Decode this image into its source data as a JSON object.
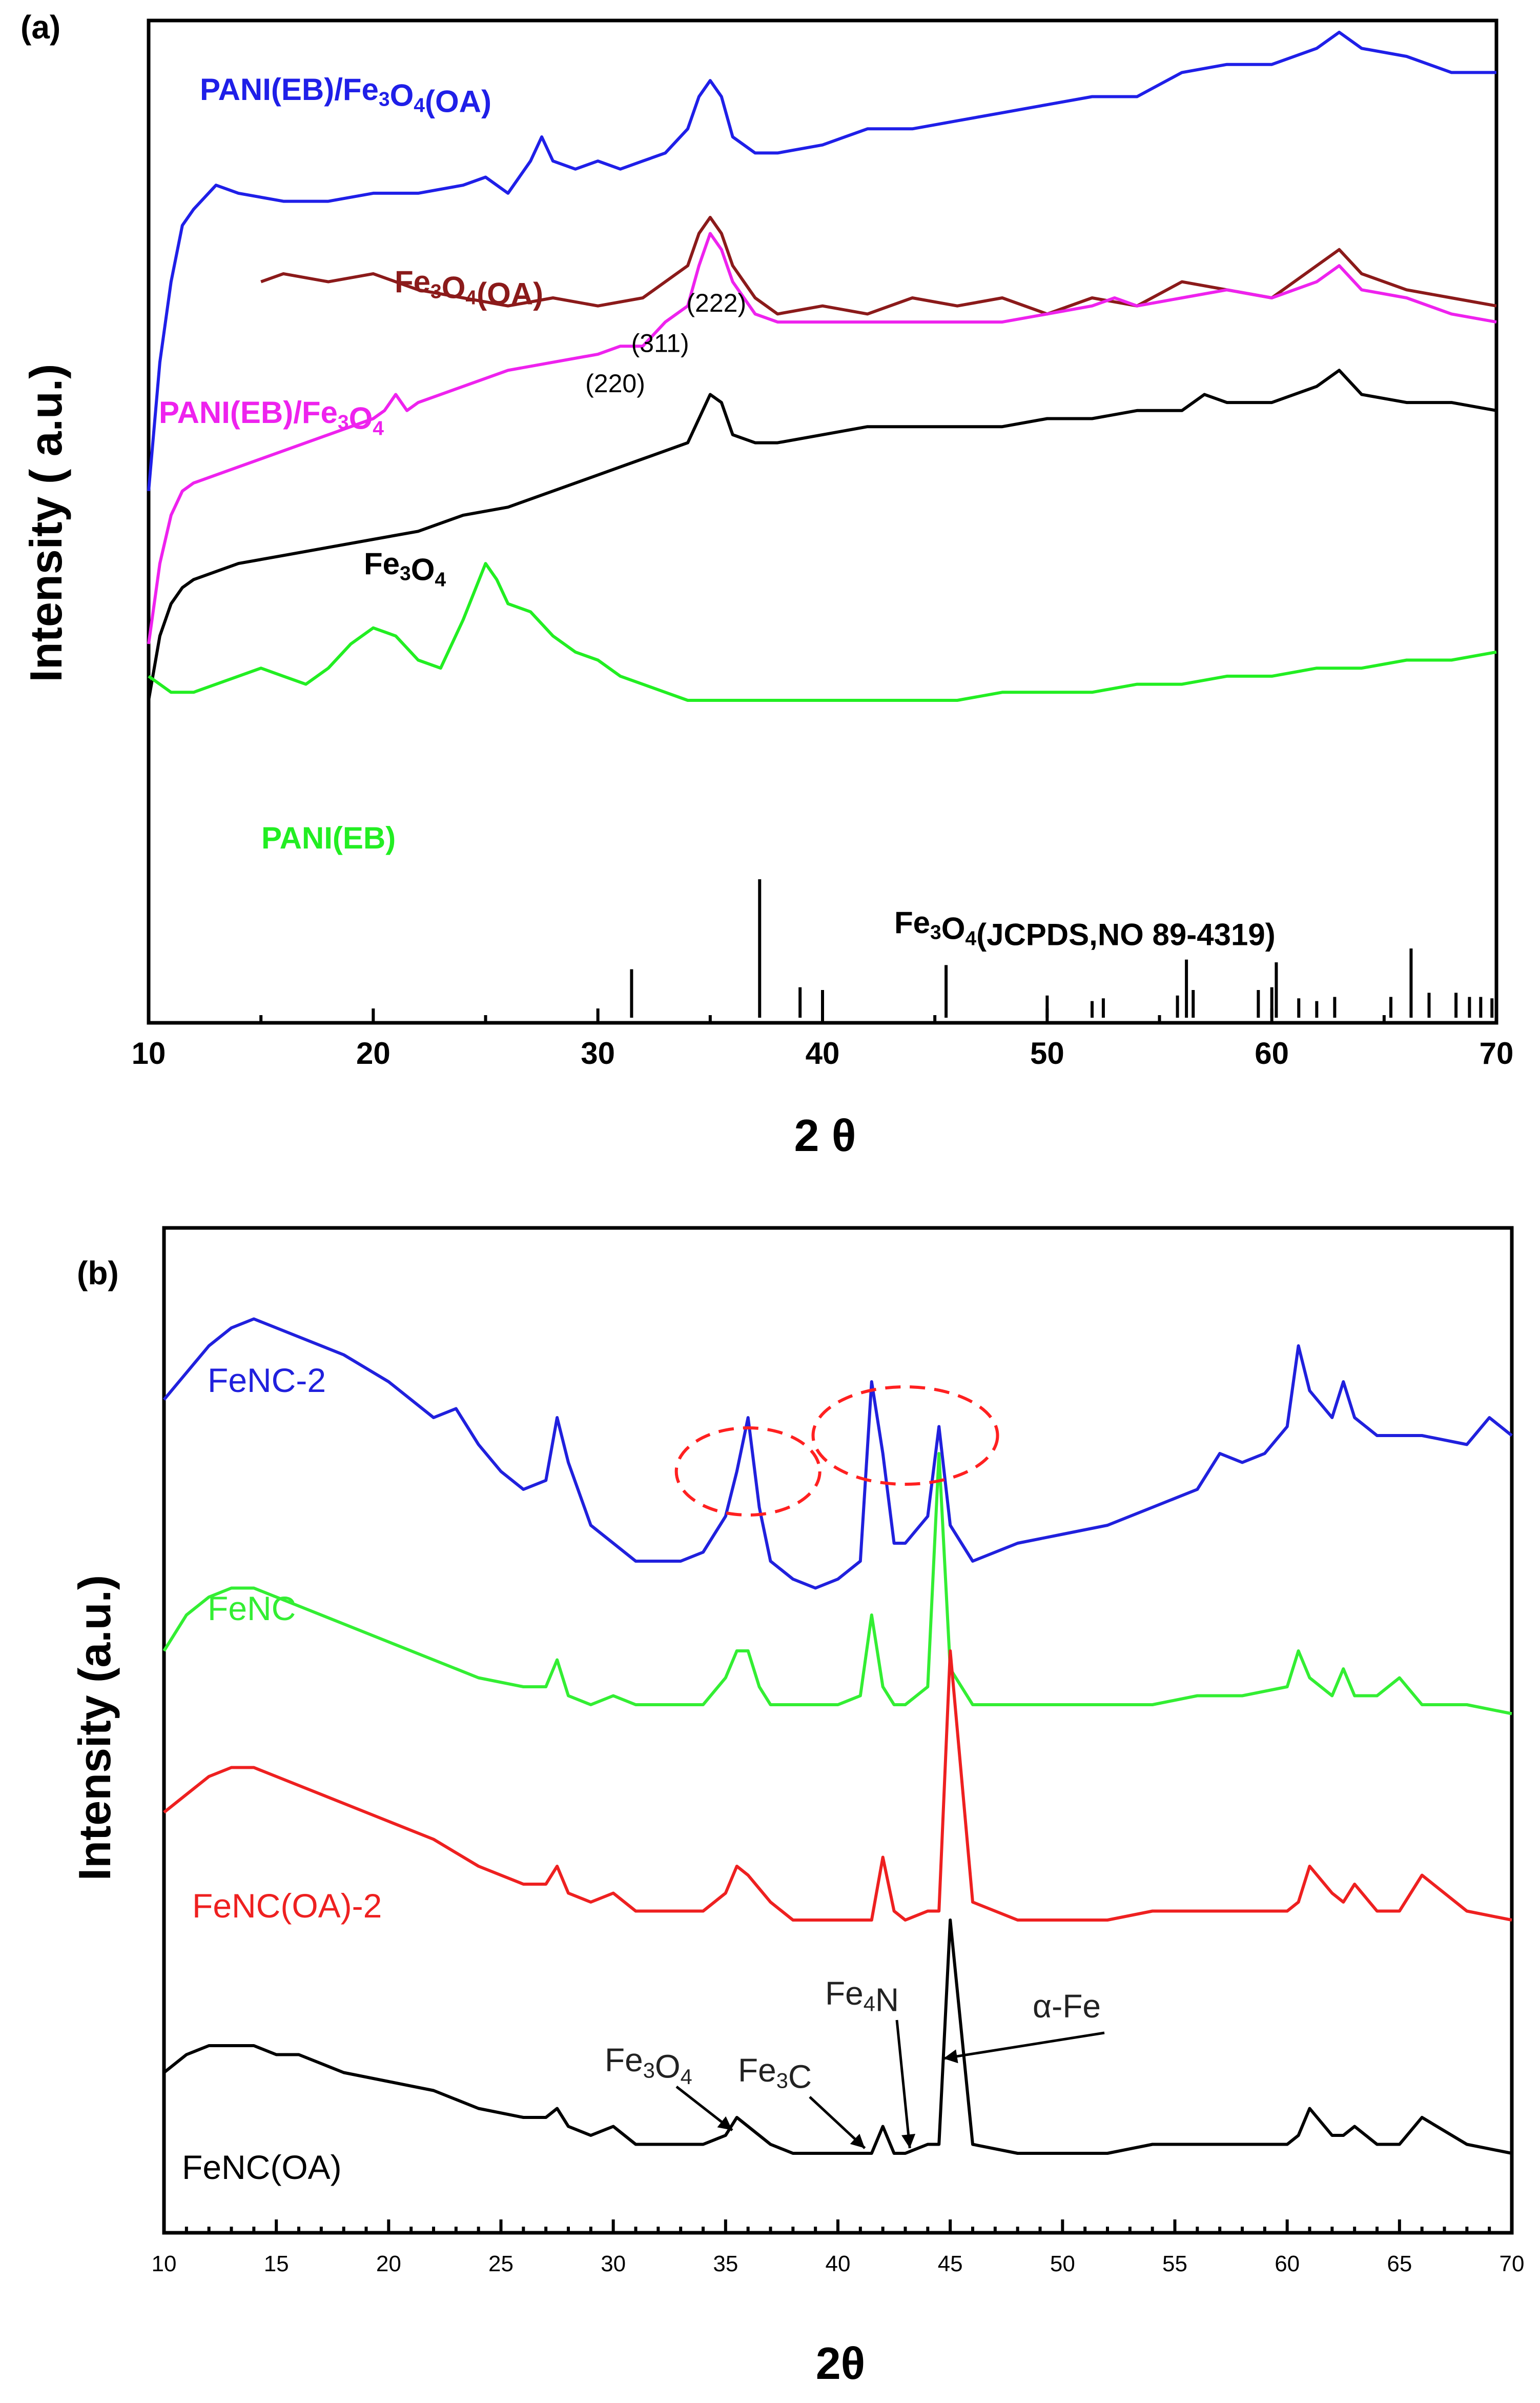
{
  "chart_data": [
    {
      "panel": "(a)",
      "type": "line",
      "xlabel": "2 θ",
      "ylabel": "Intensity ( a.u.)",
      "xlim": [
        10,
        70
      ],
      "xticks": [
        10,
        20,
        30,
        40,
        50,
        60,
        70
      ],
      "series": [
        {
          "name": "PANI(EB)/Fe3O4(OA)",
          "label_main": "PANI(EB)/Fe",
          "label_sub": "3",
          "label_mid": "O",
          "label_sub2": "4",
          "label_tail": "(OA)",
          "color": "#1f1fe8",
          "x": [
            10,
            10.5,
            11,
            11.5,
            12,
            13,
            14,
            16,
            18,
            20,
            22,
            24,
            25,
            26,
            27,
            27.5,
            28,
            29,
            30,
            31,
            32,
            33,
            34,
            34.5,
            35,
            35.5,
            36,
            37,
            38,
            40,
            42,
            44,
            46,
            48,
            50,
            52,
            54,
            56,
            58,
            60,
            62,
            63,
            64,
            66,
            68,
            70
          ],
          "y": [
            46,
            62,
            72,
            79,
            81,
            84,
            83,
            82,
            82,
            83,
            83,
            84,
            85,
            83,
            87,
            90,
            87,
            86,
            87,
            86,
            87,
            88,
            91,
            95,
            97,
            95,
            90,
            88,
            88,
            89,
            91,
            91,
            92,
            93,
            94,
            95,
            95,
            98,
            99,
            99,
            101,
            103,
            101,
            100,
            98,
            98
          ]
        },
        {
          "name": "Fe3O4(OA)",
          "label_main": "Fe",
          "label_sub": "3",
          "label_mid": "O",
          "label_sub2": "4",
          "label_tail": "(OA)",
          "color": "#8b1a1a",
          "x": [
            15,
            16,
            18,
            20,
            22,
            24,
            26,
            28,
            30,
            32,
            33,
            34,
            34.5,
            35,
            35.5,
            36,
            37,
            38,
            40,
            42,
            44,
            46,
            48,
            50,
            52,
            54,
            56,
            58,
            60,
            61,
            62,
            63,
            64,
            66,
            68,
            70
          ],
          "y": [
            72,
            73,
            72,
            73,
            71,
            70,
            69,
            70,
            69,
            70,
            72,
            74,
            78,
            80,
            78,
            74,
            70,
            68,
            69,
            68,
            70,
            69,
            70,
            68,
            70,
            69,
            72,
            71,
            70,
            72,
            74,
            76,
            73,
            71,
            70,
            69
          ]
        },
        {
          "name": "PANI(EB)/Fe3O4",
          "label_main": "PANI(EB)/Fe",
          "label_sub": "3",
          "label_mid": "O",
          "label_sub2": "4",
          "label_tail": "",
          "color": "#ee22ee",
          "x": [
            10,
            10.5,
            11,
            11.5,
            12,
            14,
            16,
            18,
            20,
            20.5,
            21,
            21.5,
            22,
            24,
            26,
            28,
            30,
            31,
            32,
            33,
            34,
            34.5,
            35,
            35.5,
            36,
            36.5,
            37,
            38,
            40,
            42,
            44,
            46,
            48,
            50,
            52,
            53,
            54,
            56,
            58,
            60,
            62,
            63,
            64,
            66,
            68,
            70
          ],
          "y": [
            27,
            37,
            43,
            46,
            47,
            49,
            51,
            53,
            55,
            56,
            58,
            56,
            57,
            59,
            61,
            62,
            63,
            64,
            64,
            67,
            69,
            74,
            78,
            76,
            72,
            70,
            68,
            67,
            67,
            67,
            67,
            67,
            67,
            68,
            69,
            70,
            69,
            70,
            71,
            70,
            72,
            74,
            71,
            70,
            68,
            67
          ]
        },
        {
          "name": "Fe3O4",
          "label_main": "Fe",
          "label_sub": "3",
          "label_mid": "O",
          "label_sub2": "4",
          "label_tail": "",
          "color": "#000000",
          "x": [
            10,
            10.5,
            11,
            11.5,
            12,
            14,
            16,
            18,
            20,
            22,
            24,
            26,
            28,
            30,
            31,
            32,
            33,
            34,
            34.5,
            35,
            35.5,
            36,
            37,
            38,
            40,
            42,
            44,
            46,
            48,
            50,
            52,
            54,
            56,
            57,
            58,
            60,
            62,
            63,
            64,
            66,
            68,
            70
          ],
          "y": [
            20,
            28,
            32,
            34,
            35,
            37,
            38,
            39,
            40,
            41,
            43,
            44,
            46,
            48,
            49,
            50,
            51,
            52,
            55,
            58,
            57,
            53,
            52,
            52,
            53,
            54,
            54,
            54,
            54,
            55,
            55,
            56,
            56,
            58,
            57,
            57,
            59,
            61,
            58,
            57,
            57,
            56
          ]
        },
        {
          "name": "PANI(EB)",
          "label_main": "PANI(EB)",
          "label_sub": "",
          "label_mid": "",
          "label_sub2": "",
          "label_tail": "",
          "color": "#22ee22",
          "x": [
            10,
            11,
            12,
            13,
            14,
            15,
            16,
            17,
            18,
            19,
            20,
            21,
            22,
            23,
            24,
            25,
            25.5,
            26,
            27,
            28,
            29,
            30,
            31,
            32,
            33,
            34,
            36,
            38,
            40,
            42,
            44,
            46,
            48,
            50,
            52,
            54,
            56,
            58,
            60,
            62,
            64,
            66,
            68,
            70
          ],
          "y": [
            23,
            21,
            21,
            22,
            23,
            24,
            23,
            22,
            24,
            27,
            29,
            28,
            25,
            24,
            30,
            37,
            35,
            32,
            31,
            28,
            26,
            25,
            23,
            22,
            21,
            20,
            20,
            20,
            20,
            20,
            20,
            20,
            21,
            21,
            21,
            22,
            22,
            23,
            23,
            24,
            24,
            25,
            25,
            26
          ]
        }
      ],
      "hkl_labels": [
        {
          "text": "(220)",
          "x": 31,
          "y": 57
        },
        {
          "text": "(311)",
          "x": 33,
          "y": 62
        },
        {
          "text": "(222)",
          "x": 35.5,
          "y": 67
        }
      ],
      "reference": {
        "label_main": "Fe",
        "label_sub": "3",
        "label_mid": "O",
        "label_sub2": "4",
        "label_tail": "(JCPDS,NO 89-4319)",
        "positions": [
          31.5,
          37.2,
          39.0,
          40.0,
          45.5,
          50.0,
          52.0,
          52.5,
          55.8,
          56.2,
          56.5,
          59.4,
          60.0,
          60.2,
          61.2,
          62.0,
          62.8,
          65.3,
          66.2,
          67.0,
          68.2,
          68.8,
          69.3,
          69.8
        ],
        "heights": [
          0.35,
          1.0,
          0.22,
          0.2,
          0.38,
          0.16,
          0.12,
          0.14,
          0.16,
          0.42,
          0.2,
          0.2,
          0.22,
          0.4,
          0.14,
          0.12,
          0.15,
          0.15,
          0.5,
          0.18,
          0.18,
          0.15,
          0.15,
          0.14
        ]
      }
    },
    {
      "panel": "(b)",
      "type": "line",
      "xlabel": "2θ",
      "ylabel": "Intensity (a.u.)",
      "xlim": [
        10,
        70
      ],
      "xticks": [
        10,
        15,
        20,
        25,
        30,
        35,
        40,
        45,
        50,
        55,
        60,
        65,
        70
      ],
      "series": [
        {
          "name": "FeNC-2",
          "color": "#2020dd",
          "x": [
            10,
            11,
            12,
            13,
            14,
            15,
            16,
            18,
            20,
            22,
            23,
            24,
            25,
            26,
            27,
            27.5,
            28,
            29,
            30,
            31,
            32,
            33,
            34,
            35,
            35.5,
            36,
            36.5,
            37,
            38,
            39,
            40,
            41,
            41.5,
            42,
            42.5,
            43,
            44,
            44.5,
            45,
            46,
            48,
            50,
            52,
            54,
            56,
            57,
            58,
            59,
            60,
            60.5,
            61,
            62,
            62.5,
            63,
            64,
            66,
            68,
            69,
            70
          ],
          "y": [
            88,
            91,
            94,
            96,
            97,
            96,
            95,
            93,
            90,
            86,
            87,
            83,
            80,
            78,
            79,
            86,
            81,
            74,
            72,
            70,
            70,
            70,
            71,
            75,
            80,
            86,
            76,
            70,
            68,
            67,
            68,
            70,
            90,
            82,
            72,
            72,
            75,
            85,
            74,
            70,
            72,
            73,
            74,
            76,
            78,
            82,
            81,
            82,
            85,
            94,
            89,
            86,
            90,
            86,
            84,
            84,
            83,
            86,
            84
          ]
        },
        {
          "name": "FeNC",
          "color": "#33ee33",
          "x": [
            10,
            11,
            12,
            13,
            14,
            15,
            16,
            18,
            20,
            22,
            24,
            26,
            27,
            27.5,
            28,
            29,
            30,
            31,
            32,
            33,
            34,
            35,
            35.5,
            36,
            36.5,
            37,
            38,
            40,
            41,
            41.5,
            42,
            42.5,
            43,
            44,
            44.5,
            45,
            46,
            48,
            50,
            52,
            54,
            56,
            58,
            60,
            60.5,
            61,
            62,
            62.5,
            63,
            64,
            65,
            66,
            68,
            70
          ],
          "y": [
            60,
            64,
            66,
            67,
            67,
            66,
            65,
            63,
            61,
            59,
            57,
            56,
            56,
            59,
            55,
            54,
            55,
            54,
            54,
            54,
            54,
            57,
            60,
            60,
            56,
            54,
            54,
            54,
            55,
            64,
            56,
            54,
            54,
            56,
            82,
            58,
            54,
            54,
            54,
            54,
            54,
            55,
            55,
            56,
            60,
            57,
            55,
            58,
            55,
            55,
            57,
            54,
            54,
            53
          ]
        },
        {
          "name": "FeNC(OA)-2",
          "color": "#ee2020",
          "x": [
            10,
            11,
            12,
            13,
            14,
            15,
            16,
            18,
            20,
            22,
            24,
            26,
            27,
            27.5,
            28,
            29,
            30,
            31,
            32,
            33,
            34,
            35,
            35.5,
            36,
            37,
            38,
            40,
            41,
            41.5,
            42,
            42.5,
            43,
            44,
            44.5,
            45,
            46,
            48,
            50,
            52,
            54,
            56,
            58,
            60,
            60.5,
            61,
            62,
            62.5,
            63,
            64,
            65,
            66,
            68,
            70
          ],
          "y": [
            42,
            44,
            46,
            47,
            47,
            46,
            45,
            43,
            41,
            39,
            36,
            34,
            34,
            36,
            33,
            32,
            33,
            31,
            31,
            31,
            31,
            33,
            36,
            35,
            32,
            30,
            30,
            30,
            30,
            37,
            31,
            30,
            31,
            31,
            60,
            32,
            30,
            30,
            30,
            31,
            31,
            31,
            31,
            32,
            36,
            33,
            32,
            34,
            31,
            31,
            35,
            31,
            30
          ]
        },
        {
          "name": "FeNC(OA)",
          "color": "#000000",
          "x": [
            10,
            11,
            12,
            13,
            14,
            15,
            16,
            18,
            20,
            22,
            24,
            26,
            27,
            27.5,
            28,
            29,
            30,
            31,
            32,
            33,
            34,
            35,
            35.5,
            36,
            37,
            38,
            40,
            41,
            41.5,
            42,
            42.5,
            43,
            44,
            44.5,
            45,
            46,
            48,
            50,
            52,
            54,
            56,
            58,
            60,
            60.5,
            61,
            62,
            62.5,
            63,
            64,
            65,
            66,
            68,
            70
          ],
          "y": [
            13,
            15,
            16,
            16,
            16,
            15,
            15,
            13,
            12,
            11,
            9,
            8,
            8,
            9,
            7,
            6,
            7,
            5,
            5,
            5,
            5,
            6,
            8,
            7,
            5,
            4,
            4,
            4,
            4,
            7,
            4,
            4,
            5,
            5,
            30,
            5,
            4,
            4,
            4,
            5,
            5,
            5,
            5,
            6,
            9,
            6,
            6,
            7,
            5,
            5,
            8,
            5,
            4
          ]
        }
      ],
      "phase_labels": [
        {
          "main": "Fe",
          "sub": "3",
          "mid": "O",
          "sub2": "4",
          "peak_x": 35.3,
          "peak_y": 6
        },
        {
          "main": "Fe",
          "sub": "3",
          "mid": "C",
          "sub2": "",
          "peak_x": 41.2,
          "peak_y": 4
        },
        {
          "main": "Fe",
          "sub": "4",
          "mid": "N",
          "sub2": "",
          "peak_x": 43.2,
          "peak_y": 4
        },
        {
          "main": "α-Fe",
          "sub": "",
          "mid": "",
          "sub2": "",
          "peak_x": 44.7,
          "peak_y": 14
        }
      ],
      "highlights": [
        {
          "cx": 36.0,
          "cy": 80
        },
        {
          "cx": 43.0,
          "cy": 84
        }
      ]
    }
  ]
}
